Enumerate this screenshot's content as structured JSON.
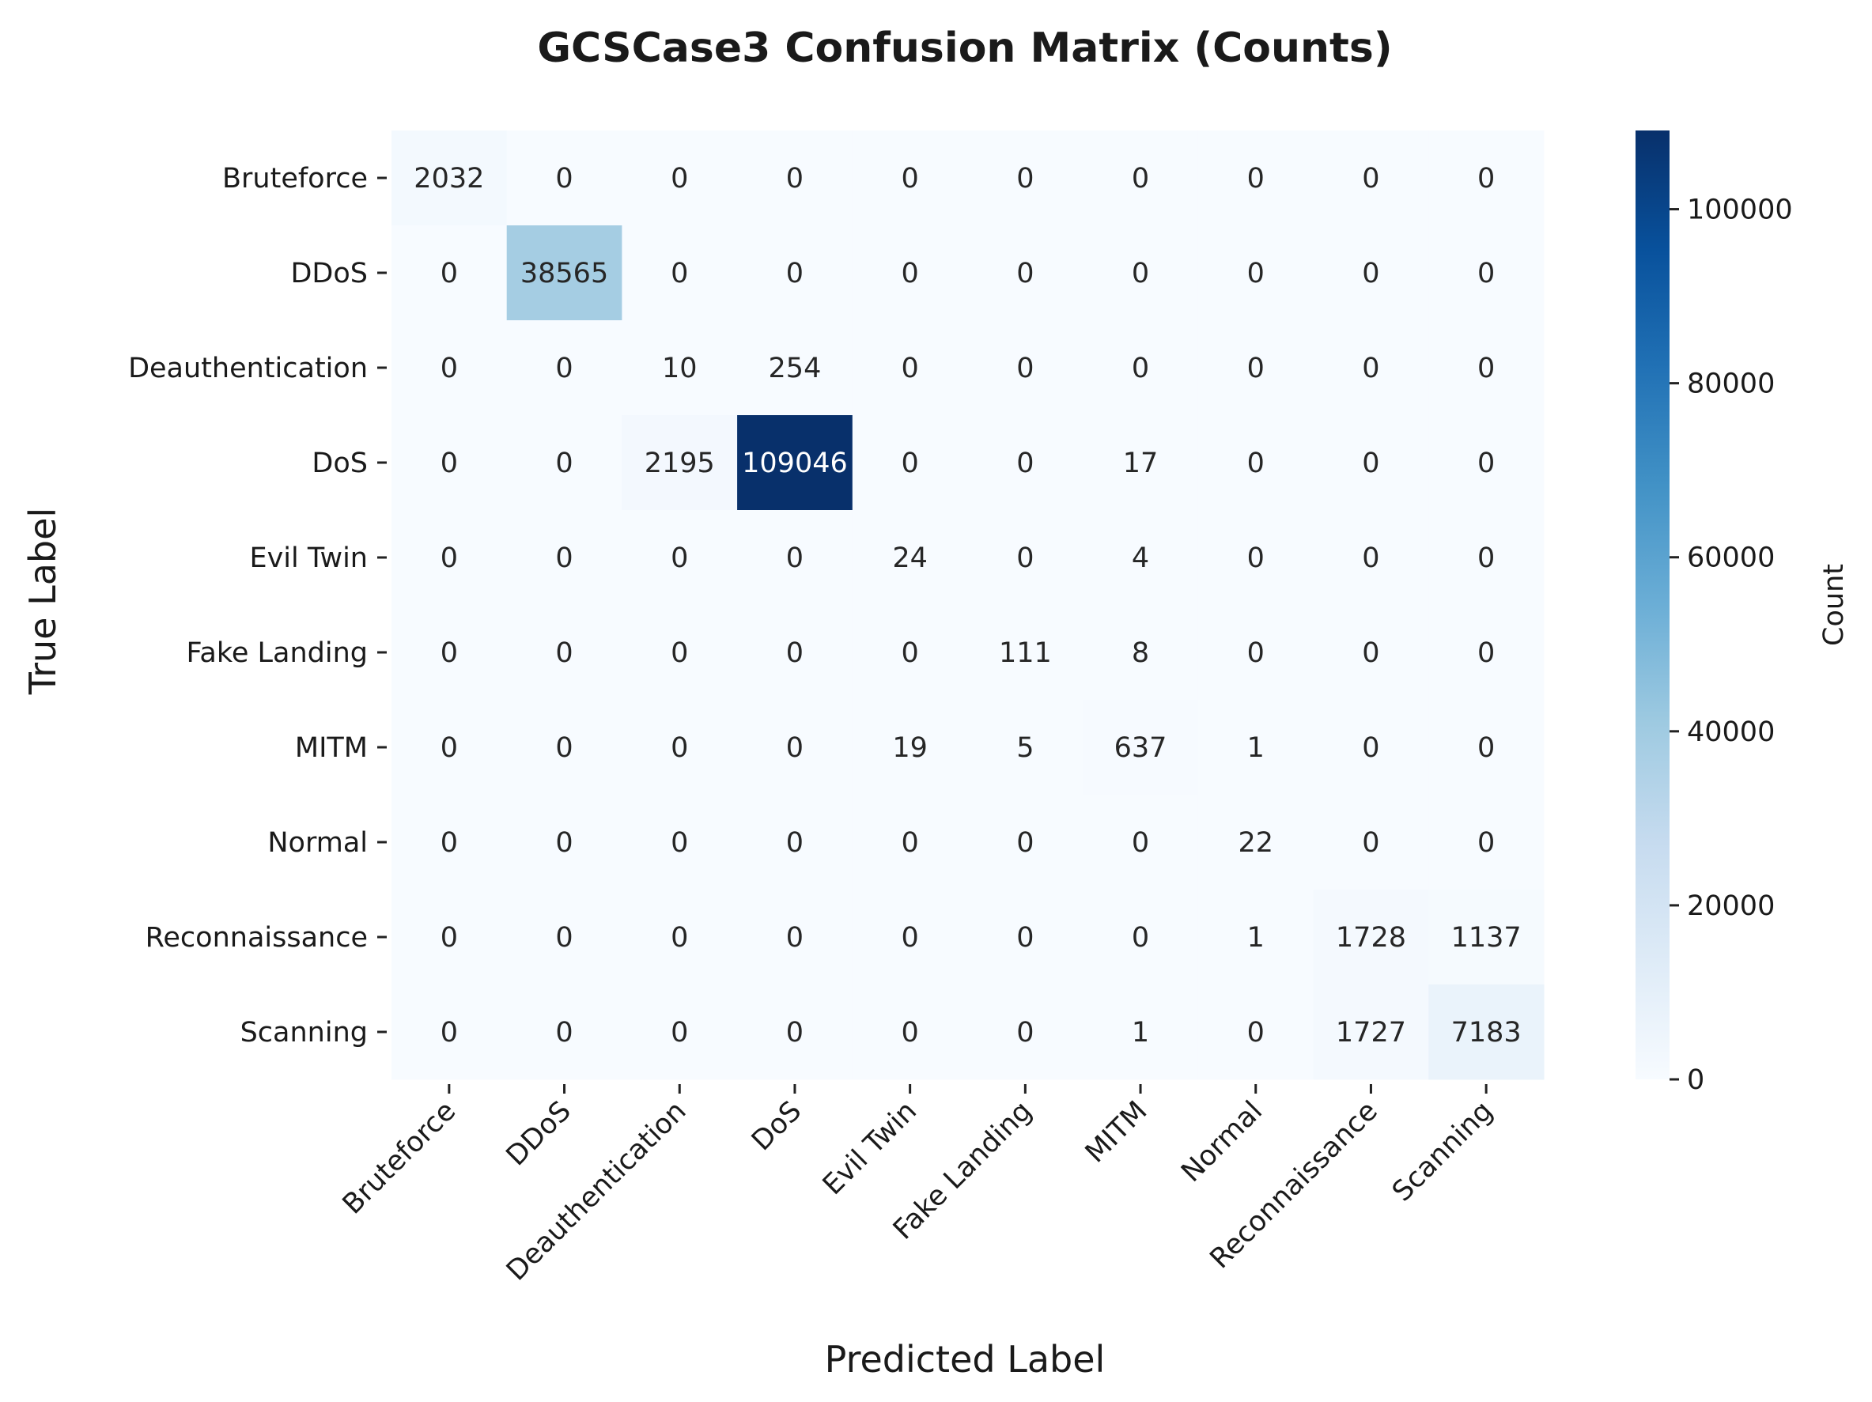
{
  "chart_data": {
    "type": "heatmap",
    "title": "GCSCase3 Confusion Matrix (Counts)",
    "xlabel": "Predicted Label",
    "ylabel": "True Label",
    "x_categories": [
      "Bruteforce",
      "DDoS",
      "Deauthentication",
      "DoS",
      "Evil Twin",
      "Fake Landing",
      "MITM",
      "Normal",
      "Reconnaissance",
      "Scanning"
    ],
    "y_categories": [
      "Bruteforce",
      "DDoS",
      "Deauthentication",
      "DoS",
      "Evil Twin",
      "Fake Landing",
      "MITM",
      "Normal",
      "Reconnaissance",
      "Scanning"
    ],
    "values": [
      [
        2032,
        0,
        0,
        0,
        0,
        0,
        0,
        0,
        0,
        0
      ],
      [
        0,
        38565,
        0,
        0,
        0,
        0,
        0,
        0,
        0,
        0
      ],
      [
        0,
        0,
        10,
        254,
        0,
        0,
        0,
        0,
        0,
        0
      ],
      [
        0,
        0,
        2195,
        109046,
        0,
        0,
        17,
        0,
        0,
        0
      ],
      [
        0,
        0,
        0,
        0,
        24,
        0,
        4,
        0,
        0,
        0
      ],
      [
        0,
        0,
        0,
        0,
        0,
        111,
        8,
        0,
        0,
        0
      ],
      [
        0,
        0,
        0,
        0,
        19,
        5,
        637,
        1,
        0,
        0
      ],
      [
        0,
        0,
        0,
        0,
        0,
        0,
        0,
        22,
        0,
        0
      ],
      [
        0,
        0,
        0,
        0,
        0,
        0,
        0,
        1,
        1728,
        1137
      ],
      [
        0,
        0,
        0,
        0,
        0,
        0,
        1,
        0,
        1727,
        7183
      ]
    ],
    "colorbar": {
      "label": "Count",
      "range": [
        0,
        109046
      ],
      "ticks": [
        0,
        20000,
        40000,
        60000,
        80000,
        100000
      ],
      "colormap": "Blues",
      "colors": [
        "#f7fbff",
        "#deebf7",
        "#c6dbef",
        "#9ecae1",
        "#6baed6",
        "#4292c6",
        "#2171b5",
        "#08519c",
        "#08306b"
      ]
    }
  }
}
